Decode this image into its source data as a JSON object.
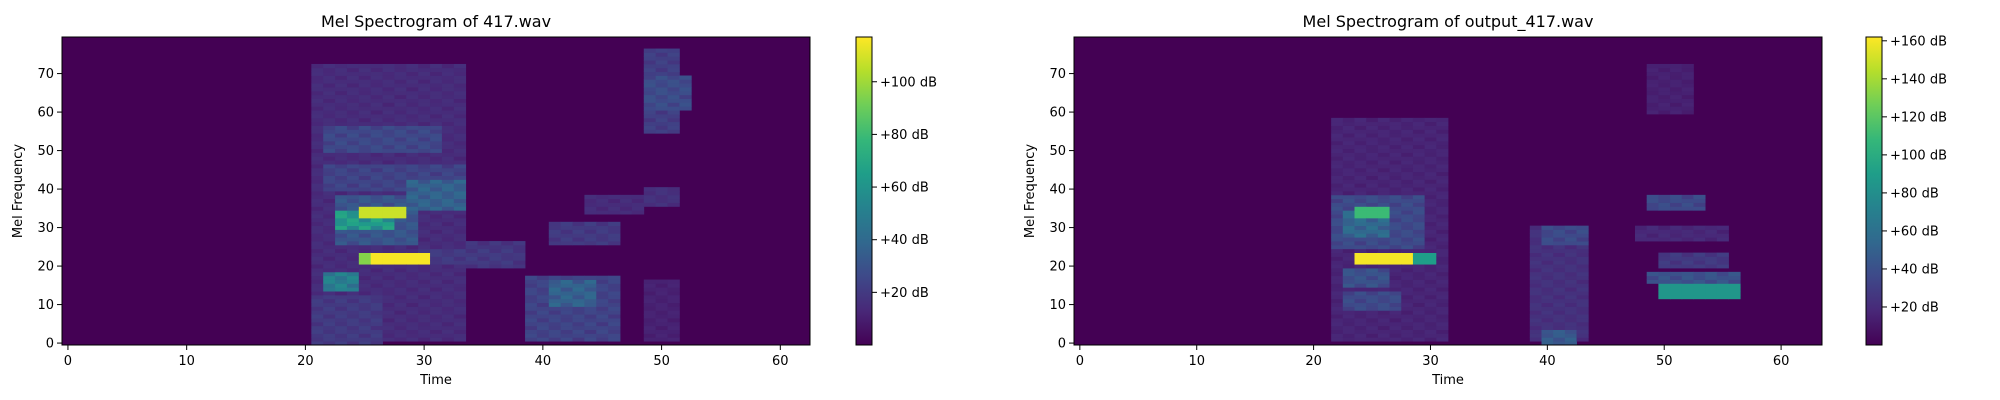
{
  "colors": {
    "background": "#440154",
    "colormap": [
      "#440154",
      "#482878",
      "#3e4989",
      "#31688e",
      "#26828e",
      "#1f9e89",
      "#35b779",
      "#6ece58",
      "#b5de2b",
      "#fde725"
    ]
  },
  "chart_data": [
    {
      "type": "heatmap",
      "title": "Mel Spectrogram of 417.wav",
      "xlabel": "Time",
      "ylabel": "Mel Frequency",
      "xlim": [
        -0.5,
        62.5
      ],
      "ylim": [
        -0.5,
        79.5
      ],
      "xticks": [
        0,
        10,
        20,
        30,
        40,
        50,
        60
      ],
      "yticks": [
        0,
        10,
        20,
        30,
        40,
        50,
        60,
        70
      ],
      "colorbar": {
        "vmin": 0,
        "vmax": 117,
        "ticks": [
          20,
          40,
          60,
          80,
          100
        ],
        "tick_labels": [
          "+20 dB",
          "+40 dB",
          "+60 dB",
          "+80 dB",
          "+100 dB"
        ]
      },
      "features": [
        {
          "t": [
            21,
            33
          ],
          "f": [
            1,
            72
          ],
          "level": 16
        },
        {
          "t": [
            21,
            26
          ],
          "f": [
            0,
            12
          ],
          "level": 22
        },
        {
          "t": [
            22,
            33
          ],
          "f": [
            40,
            46
          ],
          "level": 26
        },
        {
          "t": [
            22,
            31
          ],
          "f": [
            50,
            56
          ],
          "level": 28
        },
        {
          "t": [
            23,
            29
          ],
          "f": [
            26,
            38
          ],
          "level": 34
        },
        {
          "t": [
            22,
            24
          ],
          "f": [
            14,
            18
          ],
          "level": 55
        },
        {
          "t": [
            23,
            27
          ],
          "f": [
            30,
            34
          ],
          "level": 70
        },
        {
          "t": [
            25,
            28
          ],
          "f": [
            33,
            35
          ],
          "level": 108
        },
        {
          "t": [
            26,
            30
          ],
          "f": [
            21,
            23
          ],
          "level": 116
        },
        {
          "t": [
            25,
            26
          ],
          "f": [
            21,
            23
          ],
          "level": 95
        },
        {
          "t": [
            29,
            33
          ],
          "f": [
            35,
            42
          ],
          "level": 40
        },
        {
          "t": [
            30,
            37
          ],
          "f": [
            21,
            24
          ],
          "level": 22
        },
        {
          "t": [
            34,
            38
          ],
          "f": [
            20,
            26
          ],
          "level": 20
        },
        {
          "t": [
            39,
            46
          ],
          "f": [
            1,
            17
          ],
          "level": 26
        },
        {
          "t": [
            41,
            44
          ],
          "f": [
            10,
            16
          ],
          "level": 40
        },
        {
          "t": [
            41,
            46
          ],
          "f": [
            26,
            31
          ],
          "level": 22
        },
        {
          "t": [
            44,
            48
          ],
          "f": [
            34,
            38
          ],
          "level": 16
        },
        {
          "t": [
            49,
            51
          ],
          "f": [
            55,
            76
          ],
          "level": 24
        },
        {
          "t": [
            49,
            52
          ],
          "f": [
            61,
            69
          ],
          "level": 30
        },
        {
          "t": [
            49,
            51
          ],
          "f": [
            36,
            40
          ],
          "level": 18
        },
        {
          "t": [
            49,
            51
          ],
          "f": [
            1,
            16
          ],
          "level": 12
        }
      ]
    },
    {
      "type": "heatmap",
      "title": "Mel Spectrogram of output_417.wav",
      "xlabel": "Time",
      "ylabel": "Mel Frequency",
      "xlim": [
        -0.5,
        63.5
      ],
      "ylim": [
        -0.5,
        79.5
      ],
      "xticks": [
        0,
        10,
        20,
        30,
        40,
        50,
        60
      ],
      "yticks": [
        0,
        10,
        20,
        30,
        40,
        50,
        60,
        70
      ],
      "colorbar": {
        "vmin": 0,
        "vmax": 162,
        "ticks": [
          20,
          40,
          60,
          80,
          100,
          120,
          140,
          160
        ],
        "tick_labels": [
          "+20 dB",
          "+40 dB",
          "+60 dB",
          "+80 dB",
          "+100 dB",
          "+120 dB",
          "+140 dB",
          "+160 dB"
        ]
      },
      "features": [
        {
          "t": [
            22,
            31
          ],
          "f": [
            1,
            58
          ],
          "level": 18
        },
        {
          "t": [
            22,
            29
          ],
          "f": [
            25,
            38
          ],
          "level": 40
        },
        {
          "t": [
            23,
            26
          ],
          "f": [
            28,
            34
          ],
          "level": 60
        },
        {
          "t": [
            24,
            26
          ],
          "f": [
            33,
            35
          ],
          "level": 110
        },
        {
          "t": [
            24,
            28
          ],
          "f": [
            21,
            23
          ],
          "level": 160
        },
        {
          "t": [
            27,
            30
          ],
          "f": [
            21,
            23
          ],
          "level": 90
        },
        {
          "t": [
            23,
            27
          ],
          "f": [
            9,
            13
          ],
          "level": 40
        },
        {
          "t": [
            23,
            26
          ],
          "f": [
            15,
            19
          ],
          "level": 45
        },
        {
          "t": [
            39,
            43
          ],
          "f": [
            1,
            30
          ],
          "level": 25
        },
        {
          "t": [
            40,
            43
          ],
          "f": [
            26,
            30
          ],
          "level": 40
        },
        {
          "t": [
            40,
            42
          ],
          "f": [
            0,
            3
          ],
          "level": 50
        },
        {
          "t": [
            50,
            56
          ],
          "f": [
            12,
            15
          ],
          "level": 85
        },
        {
          "t": [
            49,
            56
          ],
          "f": [
            16,
            18
          ],
          "level": 45
        },
        {
          "t": [
            50,
            55
          ],
          "f": [
            20,
            23
          ],
          "level": 30
        },
        {
          "t": [
            49,
            53
          ],
          "f": [
            35,
            38
          ],
          "level": 40
        },
        {
          "t": [
            49,
            52
          ],
          "f": [
            60,
            72
          ],
          "level": 16
        },
        {
          "t": [
            48,
            55
          ],
          "f": [
            27,
            30
          ],
          "level": 20
        }
      ]
    }
  ]
}
